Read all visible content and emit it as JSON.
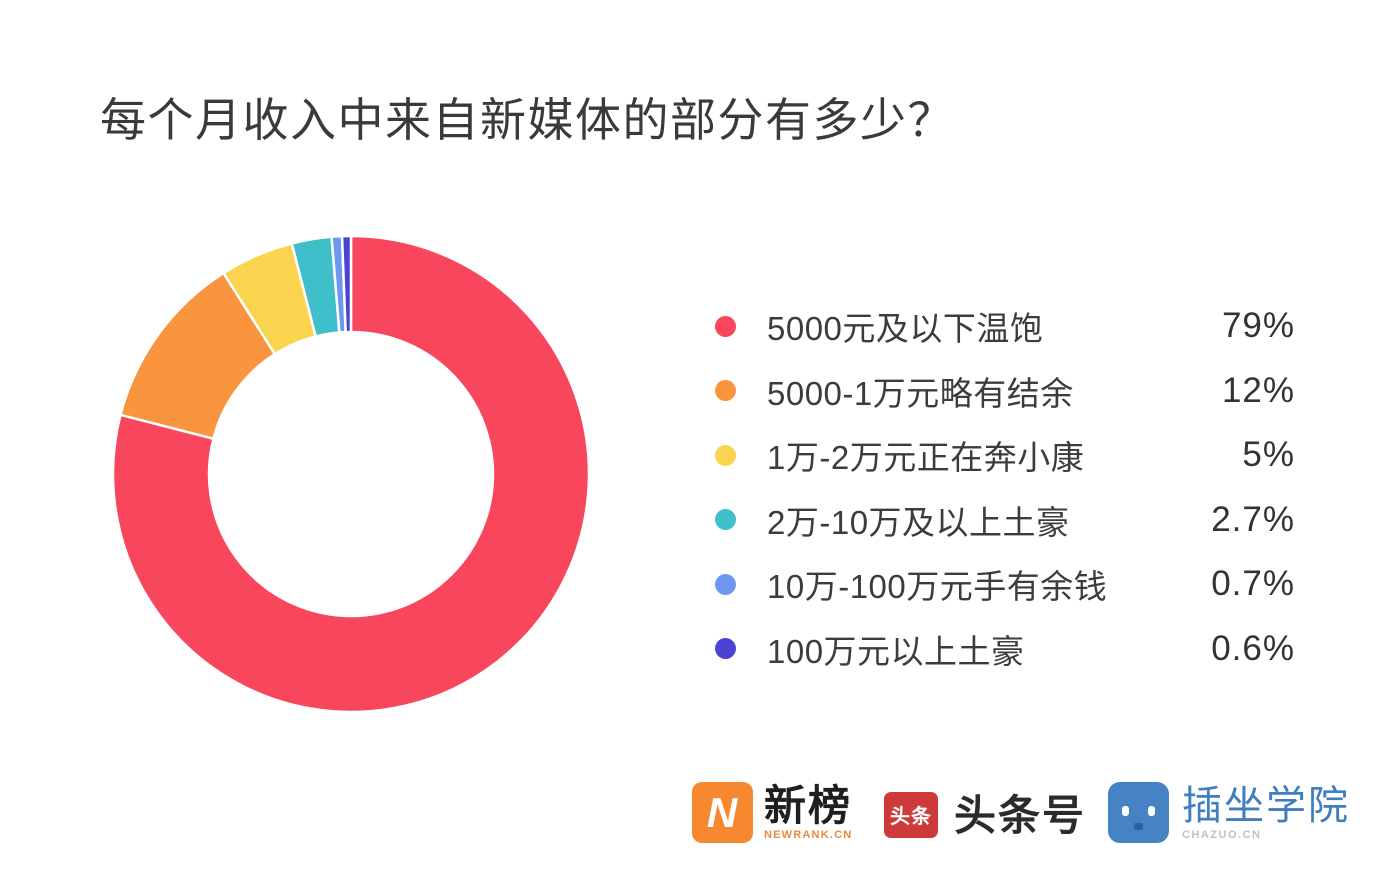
{
  "page": {
    "background": "#ffffff"
  },
  "title": "每个月收入中来自新媒体的部分有多少？",
  "chart_data": {
    "type": "pie",
    "subtype": "donut",
    "title": "每个月收入中来自新媒体的部分有多少？",
    "start_angle_deg": 0,
    "direction": "clockwise",
    "categories": [
      "5000元及以下温饱",
      "5000-1万元略有结余",
      "1万-2万元正在奔小康",
      "2万-10万及以上土豪",
      "10万-100万元手有余钱",
      "100万元以上土豪"
    ],
    "values": [
      79,
      12,
      5,
      2.7,
      0.7,
      0.6
    ],
    "unit": "%",
    "colors": [
      "#F8475C",
      "#F9953E",
      "#FAD44E",
      "#3EBFC9",
      "#6D97F1",
      "#4B44D0"
    ],
    "slice_gap_color": "#ffffff",
    "legend_position": "right"
  },
  "legend": {
    "items": [
      {
        "label": "5000元及以下温饱",
        "value": "79%",
        "color": "#F8475C"
      },
      {
        "label": "5000-1万元略有结余",
        "value": "12%",
        "color": "#F9953E"
      },
      {
        "label": "1万-2万元正在奔小康",
        "value": "5%",
        "color": "#FAD44E"
      },
      {
        "label": "2万-10万及以上土豪",
        "value": "2.7%",
        "color": "#3EBFC9"
      },
      {
        "label": "10万-100万元手有余钱",
        "value": "0.7%",
        "color": "#6D97F1"
      },
      {
        "label": "100万元以上土豪",
        "value": "0.6%",
        "color": "#4B44D0"
      }
    ]
  },
  "footer": {
    "logos": [
      {
        "name": "newrank",
        "text": "新榜",
        "subtext": "NEWRANK.CN",
        "icon_letter": "N",
        "icon_color": "#F6892F",
        "text_color": "#1f1f1f",
        "subtext_color": "#E98A3C"
      },
      {
        "name": "toutiao",
        "text": "头条号",
        "badge_text": "头条",
        "icon_color": "#CE3A3A",
        "text_color": "#2b2b2b"
      },
      {
        "name": "chazuo",
        "text": "插坐学院",
        "subtext": "CHAZUO.CN",
        "icon_color": "#4583C5",
        "text_color": "#3F7EC0",
        "subtext_color": "#B8C3CD"
      }
    ]
  }
}
